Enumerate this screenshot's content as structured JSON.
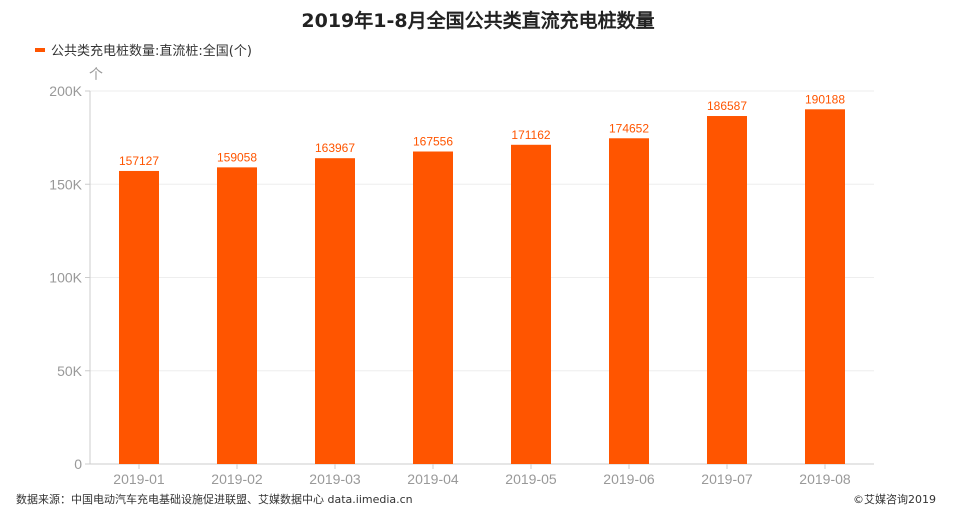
{
  "chart_data": {
    "type": "bar",
    "title": "2019年1-8月全国公共类直流充电桩数量",
    "legend": "公共类充电桩数量:直流桩:全国(个)",
    "legend_position": "top-left",
    "unit_label": "个",
    "categories": [
      "2019-01",
      "2019-02",
      "2019-03",
      "2019-04",
      "2019-05",
      "2019-06",
      "2019-07",
      "2019-08"
    ],
    "series": [
      {
        "name": "公共类充电桩数量:直流桩:全国(个)",
        "values": [
          157127,
          159058,
          163967,
          167556,
          171162,
          174652,
          186587,
          190188
        ]
      }
    ],
    "ylim": [
      0,
      200000
    ],
    "yticks": [
      0,
      50000,
      100000,
      150000,
      200000
    ],
    "ytick_labels": [
      "0",
      "50K",
      "100K",
      "150K",
      "200K"
    ],
    "grid": true,
    "bar_color": "#FF5500",
    "label_color": "#FF5500"
  },
  "footer": {
    "source": "数据来源：中国电动汽车充电基础设施促进联盟、艾媒数据中心 data.iimedia.cn",
    "copyright": "©艾媒咨询2019"
  }
}
